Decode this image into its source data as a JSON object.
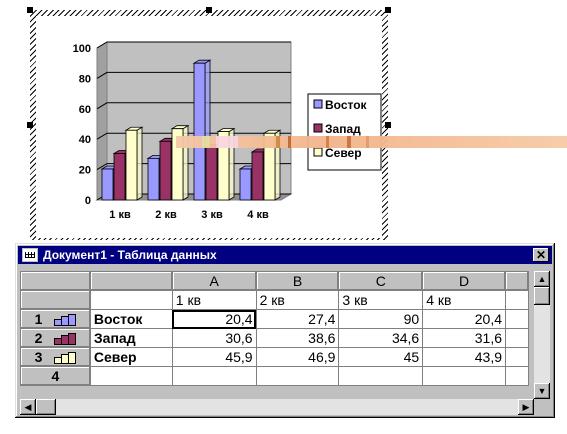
{
  "window": {
    "title": "Документ1 - Таблица данных",
    "close_glyph": "✕"
  },
  "columns": [
    "A",
    "B",
    "C",
    "D"
  ],
  "header_row_values": [
    "1 кв",
    "2 кв",
    "3 кв",
    "4 кв"
  ],
  "rows": [
    {
      "num": "1",
      "label": "Восток",
      "values": [
        "20,4",
        "27,4",
        "90",
        "20,4"
      ]
    },
    {
      "num": "2",
      "label": "Запад",
      "values": [
        "30,6",
        "38,6",
        "34,6",
        "31,6"
      ]
    },
    {
      "num": "3",
      "label": "Север",
      "values": [
        "45,9",
        "46,9",
        "45",
        "43,9"
      ]
    },
    {
      "num": "4",
      "label": "",
      "values": [
        "",
        "",
        "",
        ""
      ]
    }
  ],
  "selected_cell": "A1",
  "chart_data": {
    "type": "bar",
    "categories": [
      "1 кв",
      "2 кв",
      "3 кв",
      "4 кв"
    ],
    "series": [
      {
        "name": "Восток",
        "values": [
          20.4,
          27.4,
          90,
          20.4
        ],
        "color": "#9999ff"
      },
      {
        "name": "Запад",
        "values": [
          30.6,
          38.6,
          34.6,
          31.6
        ],
        "color": "#993366"
      },
      {
        "name": "Север",
        "values": [
          45.9,
          46.9,
          45,
          43.9
        ],
        "color": "#ffffcc"
      }
    ],
    "yticks": [
      "0",
      "20",
      "40",
      "60",
      "80",
      "100"
    ],
    "ylim": [
      0,
      100
    ],
    "legend_position": "right",
    "grid": true,
    "style": "3d-clustered-column"
  },
  "colors": {
    "titlebar": "#000080",
    "chart_wall": "#c0c0c0",
    "artifact_streak": "#f2b48a"
  }
}
